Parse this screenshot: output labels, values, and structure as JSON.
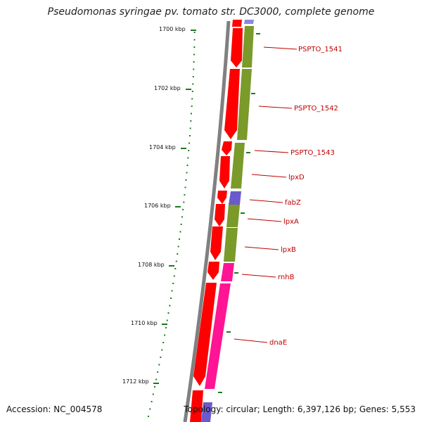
{
  "title": "Pseudomonas syringae pv. tomato str. DC3000, complete genome",
  "footer": {
    "accession": "Accession: NC_004578",
    "topology": "Topology: circular; Length: 6,397,126 bp; Genes: 5,553"
  },
  "scale_labels": [
    "1700 kbp",
    "1702 kbp",
    "1704 kbp",
    "1706 kbp",
    "1708 kbp",
    "1710 kbp",
    "1712 kbp"
  ],
  "gene_labels": [
    "PSPTO_1541",
    "PSPTO_1542",
    "PSPTO_1543",
    "lpxD",
    "fabZ",
    "lpxA",
    "lpxB",
    "rnhB",
    "dnaE"
  ],
  "colors": {
    "forward_cds": "#ff0000",
    "cog_green": "#7a9a2a",
    "cog_blue": "#6a5acd",
    "cog_pink": "#ff1493",
    "backbone": "#808080",
    "ticks": "#1f7a1f",
    "label_text": "#c00000"
  }
}
